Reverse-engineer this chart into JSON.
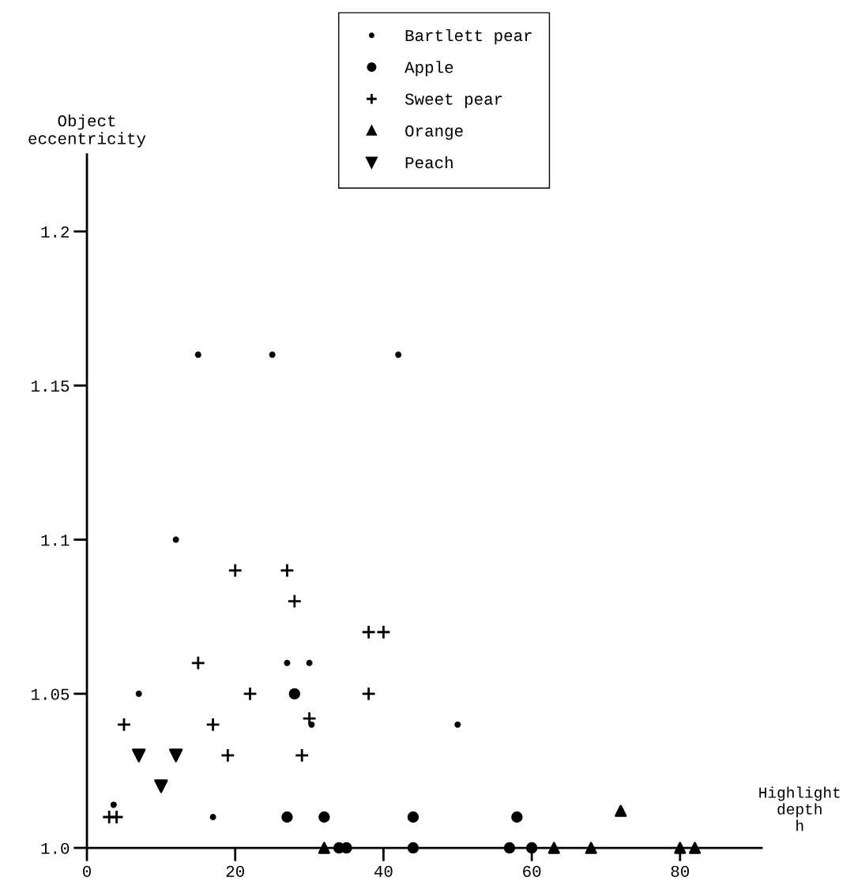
{
  "chart_data": {
    "type": "scatter",
    "xlabel": "Highlight\ndepth\nh",
    "ylabel": "Object\neccentricity",
    "xlim": [
      0,
      91
    ],
    "ylim": [
      1.0,
      1.225
    ],
    "xticks": [
      0,
      20,
      40,
      60,
      80
    ],
    "yticks": [
      {
        "value": 1.0,
        "label": "1.0"
      },
      1.05,
      1.1,
      1.15,
      1.2
    ],
    "grid": false,
    "legend": "top",
    "series": [
      {
        "name": "Bartlett pear",
        "color": "#000000",
        "marker": "circle",
        "x": [
          15,
          25,
          42,
          12,
          27,
          30,
          7,
          50,
          30.3,
          17,
          3.6
        ],
        "values": [
          1.16,
          1.16,
          1.16,
          1.1,
          1.06,
          1.06,
          1.05,
          1.04,
          1.04,
          1.01,
          1.014
        ]
      },
      {
        "name": "Apple",
        "color": "#000000",
        "marker": "circle",
        "x": [
          28,
          27,
          32,
          44,
          58,
          34,
          35,
          44,
          57,
          60
        ],
        "values": [
          1.05,
          1.01,
          1.01,
          1.01,
          1.01,
          1.0,
          1.0,
          1.0,
          1.0,
          1.0
        ]
      },
      {
        "name": "Sweet pear",
        "color": "#000000",
        "marker": "cross",
        "x": [
          20,
          27,
          28,
          38,
          40,
          15,
          22,
          38,
          5,
          17,
          30,
          19,
          29,
          3,
          4
        ],
        "values": [
          1.09,
          1.09,
          1.08,
          1.07,
          1.07,
          1.06,
          1.05,
          1.05,
          1.04,
          1.04,
          1.042,
          1.03,
          1.03,
          1.01,
          1.01
        ]
      },
      {
        "name": "Orange",
        "color": "#000000",
        "marker": "triangle",
        "x": [
          72,
          32,
          63,
          68,
          80,
          82
        ],
        "values": [
          1.012,
          1.0,
          1.0,
          1.0,
          1.0,
          1.0
        ]
      },
      {
        "name": "Peach",
        "color": "#000000",
        "marker": "triangle_down",
        "x": [
          7,
          12,
          10
        ],
        "values": [
          1.03,
          1.03,
          1.02
        ]
      }
    ]
  }
}
